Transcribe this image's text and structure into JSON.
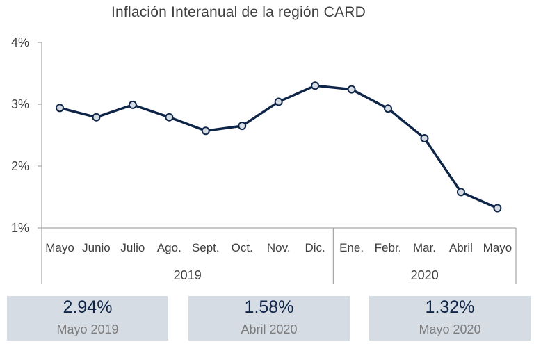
{
  "chart_data": {
    "type": "line",
    "title": "Inflación Interanual de la región CARD",
    "categories": [
      "Mayo",
      "Junio",
      "Julio",
      "Ago.",
      "Sept.",
      "Oct.",
      "Nov.",
      "Dic.",
      "Ene.",
      "Febr.",
      "Mar.",
      "Abril",
      "Mayo"
    ],
    "year_groups": [
      {
        "label": "2019",
        "start": 0,
        "end": 7
      },
      {
        "label": "2020",
        "start": 8,
        "end": 12
      }
    ],
    "series": [
      {
        "values": [
          2.94,
          2.79,
          2.99,
          2.79,
          2.57,
          2.65,
          3.04,
          3.3,
          3.24,
          2.93,
          2.45,
          1.58,
          1.32
        ]
      }
    ],
    "ylim": [
      1,
      4
    ],
    "yticks": [
      1,
      2,
      3,
      4
    ],
    "ytick_labels": [
      "1%",
      "2%",
      "3%",
      "4%"
    ],
    "grid": false,
    "colors": {
      "line": "#0f2547",
      "marker_fill": "#d6dce4",
      "axis": "#a6a6a6"
    }
  },
  "summary_cards": [
    {
      "value": "2.94%",
      "label": "Mayo 2019"
    },
    {
      "value": "1.58%",
      "label": "Abril 2020"
    },
    {
      "value": "1.32%",
      "label": "Mayo 2020"
    }
  ]
}
